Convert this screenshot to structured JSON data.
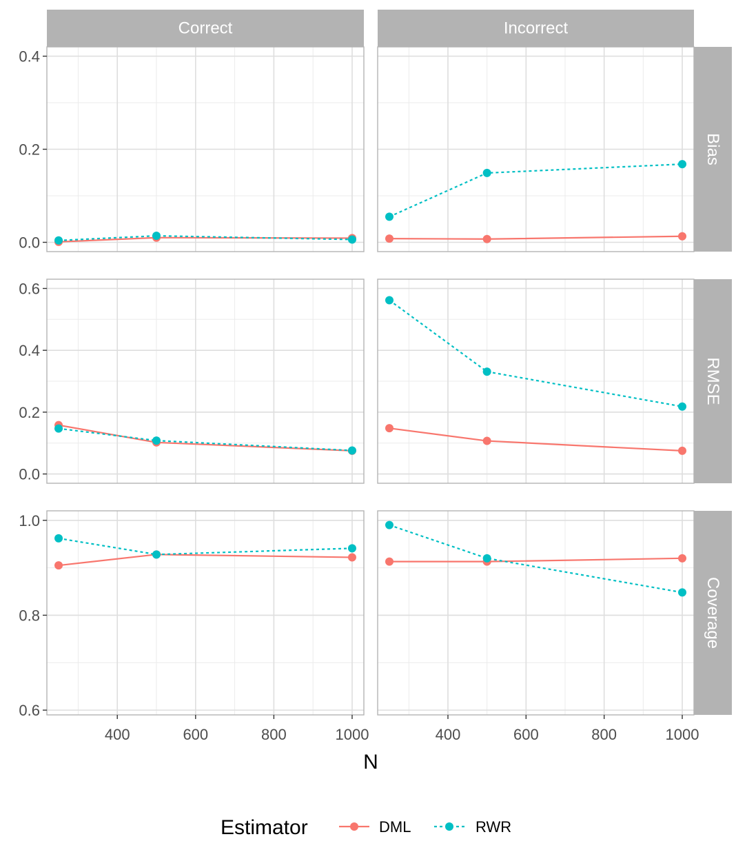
{
  "chart_data": {
    "type": "line",
    "facets": {
      "columns": [
        "Correct",
        "Incorrect"
      ],
      "rows": [
        "Bias",
        "RMSE",
        "Coverage"
      ]
    },
    "x": [
      250,
      500,
      1000
    ],
    "xlabel": "N",
    "x_ticks": [
      "400",
      "600",
      "800",
      "1000"
    ],
    "x_tick_values": [
      400,
      600,
      800,
      1000
    ],
    "xlim": [
      220,
      1030
    ],
    "panel_y": {
      "Bias": {
        "ylim": [
          -0.02,
          0.42
        ],
        "ticks": [
          0.0,
          0.2,
          0.4
        ],
        "tick_labels": [
          "0.0",
          "0.2",
          "0.4"
        ]
      },
      "RMSE": {
        "ylim": [
          -0.03,
          0.63
        ],
        "ticks": [
          0.0,
          0.2,
          0.4,
          0.6
        ],
        "tick_labels": [
          "0.0",
          "0.2",
          "0.4",
          "0.6"
        ]
      },
      "Coverage": {
        "ylim": [
          0.59,
          1.02
        ],
        "ticks": [
          0.6,
          0.8,
          1.0
        ],
        "tick_labels": [
          "0.6",
          "0.8",
          "1.0"
        ]
      }
    },
    "legend": {
      "title": "Estimator",
      "position": "bottom"
    },
    "series": [
      {
        "name": "DML",
        "color": "#F8766D",
        "linetype": "solid",
        "values": {
          "Bias": {
            "Correct": [
              0.001,
              0.01,
              0.009
            ],
            "Incorrect": [
              0.008,
              0.007,
              0.013
            ]
          },
          "RMSE": {
            "Correct": [
              0.158,
              0.102,
              0.075
            ],
            "Incorrect": [
              0.148,
              0.107,
              0.075
            ]
          },
          "Coverage": {
            "Correct": [
              0.905,
              0.928,
              0.922
            ],
            "Incorrect": [
              0.913,
              0.913,
              0.92
            ]
          }
        }
      },
      {
        "name": "RWR",
        "color": "#00BFC4",
        "linetype": "dashed",
        "values": {
          "Bias": {
            "Correct": [
              0.004,
              0.014,
              0.006
            ],
            "Incorrect": [
              0.055,
              0.149,
              0.168
            ]
          },
          "RMSE": {
            "Correct": [
              0.147,
              0.108,
              0.076
            ],
            "Incorrect": [
              0.562,
              0.331,
              0.218
            ]
          },
          "Coverage": {
            "Correct": [
              0.962,
              0.928,
              0.941
            ],
            "Incorrect": [
              0.99,
              0.92,
              0.848
            ]
          }
        }
      }
    ],
    "grid": true
  }
}
